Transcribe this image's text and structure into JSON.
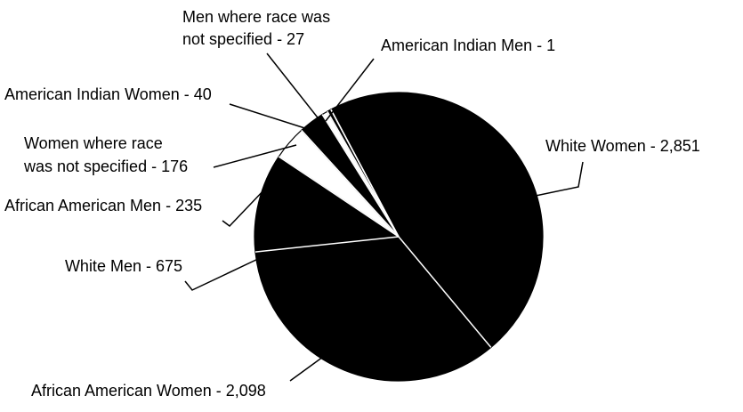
{
  "chart_data": {
    "type": "pie",
    "categories": [
      [
        "White Women - 2,851"
      ],
      [
        "African American Women - 2,098"
      ],
      [
        "White Men - 675"
      ],
      [
        "African American Men - 235"
      ],
      [
        "Women where race",
        "was not specified - 176"
      ],
      [
        "American Indian Women - 40"
      ],
      [
        "Men where race was",
        "not specified - 27"
      ],
      [
        "American Indian Men - 1"
      ]
    ],
    "values": [
      2851,
      2098,
      675,
      235,
      176,
      40,
      27,
      1
    ],
    "colors": [
      "#000000",
      "#000000",
      "#000000",
      "#ffffff",
      "#000000",
      "#ffffff",
      "#000000",
      "#ffffff"
    ]
  }
}
